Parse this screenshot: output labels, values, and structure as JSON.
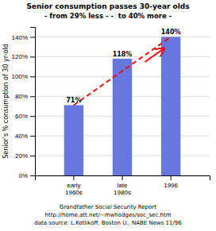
{
  "chart_data": {
    "type": "bar",
    "title": "Senior consumption passes 30-year olds",
    "subtitle": "- from 29% less - -  to 40% more -",
    "ylabel": "Senior's % consumption of 30 yr-old",
    "categories": [
      "early\n1960s",
      "late\n1980s",
      "1996"
    ],
    "values": [
      71,
      118,
      140
    ],
    "value_labels": [
      "71%",
      "118%",
      "140%"
    ],
    "data_labels": true,
    "color": "#6677dd",
    "ylim": [
      0,
      150
    ],
    "yticks": [
      {
        "value": 0,
        "label": "0%"
      },
      {
        "value": 20,
        "label": "20%"
      },
      {
        "value": 40,
        "label": "40%"
      },
      {
        "value": 60,
        "label": "60%"
      },
      {
        "value": 80,
        "label": "80%"
      },
      {
        "value": 100,
        "label": "100%"
      },
      {
        "value": 120,
        "label": "120%"
      },
      {
        "value": 140,
        "label": "140%"
      }
    ],
    "grid": true,
    "annotations": [
      "Grandfather Social Security Report",
      "http://home.att.net/~mwhodges/soc_sec.htm",
      "data source: L.Kotlikoff, Boston U., NABE News 11/96"
    ]
  }
}
